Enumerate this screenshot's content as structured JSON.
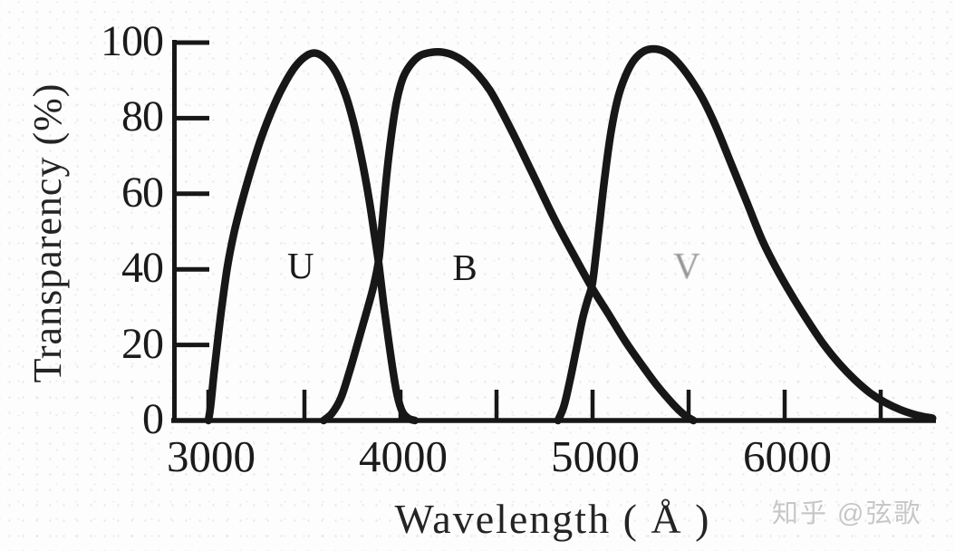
{
  "chart_data": {
    "type": "line",
    "title": "",
    "xlabel": "Wavelength ( Å )",
    "ylabel": "Transparency (%)",
    "xlim": [
      2820,
      6790
    ],
    "ylim": [
      0,
      100
    ],
    "x_ticks_major": [
      3000,
      4000,
      5000,
      6000
    ],
    "x_ticks_minor": [
      3500,
      4500,
      5500,
      6500
    ],
    "y_ticks": [
      0,
      20,
      40,
      60,
      80,
      100
    ],
    "grid": false,
    "legend": "none",
    "line_color": "#171717",
    "series": [
      {
        "name": "U",
        "label": "U",
        "label_pos": {
          "wavelength": 3480,
          "transparency": 41
        },
        "faint": false,
        "points": [
          [
            3000,
            0
          ],
          [
            3012,
            4
          ],
          [
            3028,
            12
          ],
          [
            3048,
            21
          ],
          [
            3072,
            31
          ],
          [
            3100,
            41
          ],
          [
            3135,
            50
          ],
          [
            3175,
            58
          ],
          [
            3220,
            66
          ],
          [
            3270,
            74
          ],
          [
            3330,
            82
          ],
          [
            3390,
            88.5
          ],
          [
            3450,
            93.5
          ],
          [
            3510,
            96.5
          ],
          [
            3560,
            97.2
          ],
          [
            3615,
            95.5
          ],
          [
            3665,
            92
          ],
          [
            3715,
            86
          ],
          [
            3755,
            79
          ],
          [
            3795,
            70
          ],
          [
            3835,
            59
          ],
          [
            3862,
            50
          ],
          [
            3888,
            41
          ],
          [
            3912,
            31
          ],
          [
            3936,
            22
          ],
          [
            3960,
            13.5
          ],
          [
            3984,
            6.5
          ],
          [
            4010,
            2.3
          ],
          [
            4040,
            0.6
          ],
          [
            4075,
            0
          ]
        ]
      },
      {
        "name": "B",
        "label": "B",
        "label_pos": {
          "wavelength": 4335,
          "transparency": 40.5
        },
        "faint": false,
        "points": [
          [
            3600,
            0
          ],
          [
            3645,
            2
          ],
          [
            3690,
            6
          ],
          [
            3735,
            13
          ],
          [
            3780,
            21
          ],
          [
            3825,
            29
          ],
          [
            3862,
            36
          ],
          [
            3888,
            43
          ],
          [
            3908,
            54
          ],
          [
            3930,
            66
          ],
          [
            3954,
            76
          ],
          [
            3980,
            84.5
          ],
          [
            4012,
            90.5
          ],
          [
            4050,
            94
          ],
          [
            4100,
            96.5
          ],
          [
            4160,
            97.4
          ],
          [
            4225,
            97.4
          ],
          [
            4285,
            96.4
          ],
          [
            4345,
            94.4
          ],
          [
            4405,
            91.4
          ],
          [
            4465,
            87.4
          ],
          [
            4525,
            82
          ],
          [
            4605,
            74
          ],
          [
            4705,
            63.5
          ],
          [
            4805,
            53
          ],
          [
            4905,
            43.5
          ],
          [
            4995,
            35.3
          ],
          [
            5085,
            28
          ],
          [
            5170,
            21
          ],
          [
            5255,
            14.8
          ],
          [
            5340,
            9
          ],
          [
            5420,
            4.3
          ],
          [
            5475,
            1.6
          ],
          [
            5525,
            0
          ]
        ]
      },
      {
        "name": "V",
        "label": "V",
        "label_pos": {
          "wavelength": 5490,
          "transparency": 41
        },
        "faint": true,
        "points": [
          [
            4820,
            0
          ],
          [
            4852,
            4
          ],
          [
            4884,
            11
          ],
          [
            4916,
            19
          ],
          [
            4948,
            27
          ],
          [
            4975,
            32
          ],
          [
            4998,
            36
          ],
          [
            5018,
            44
          ],
          [
            5040,
            54
          ],
          [
            5065,
            65
          ],
          [
            5095,
            76
          ],
          [
            5130,
            85
          ],
          [
            5170,
            91
          ],
          [
            5215,
            95.3
          ],
          [
            5270,
            97.8
          ],
          [
            5330,
            98.3
          ],
          [
            5390,
            97.2
          ],
          [
            5450,
            94.4
          ],
          [
            5515,
            90
          ],
          [
            5575,
            85
          ],
          [
            5645,
            77.5
          ],
          [
            5725,
            67.5
          ],
          [
            5805,
            57.5
          ],
          [
            5885,
            47.5
          ],
          [
            5965,
            39.5
          ],
          [
            6045,
            32.5
          ],
          [
            6125,
            26
          ],
          [
            6205,
            20
          ],
          [
            6285,
            15
          ],
          [
            6365,
            10.8
          ],
          [
            6445,
            7.3
          ],
          [
            6525,
            4.7
          ],
          [
            6605,
            2.8
          ],
          [
            6690,
            1.4
          ],
          [
            6770,
            0.6
          ]
        ]
      }
    ]
  },
  "watermark": {
    "text": "知乎 @弦歌",
    "color": "#c7c7c7"
  }
}
